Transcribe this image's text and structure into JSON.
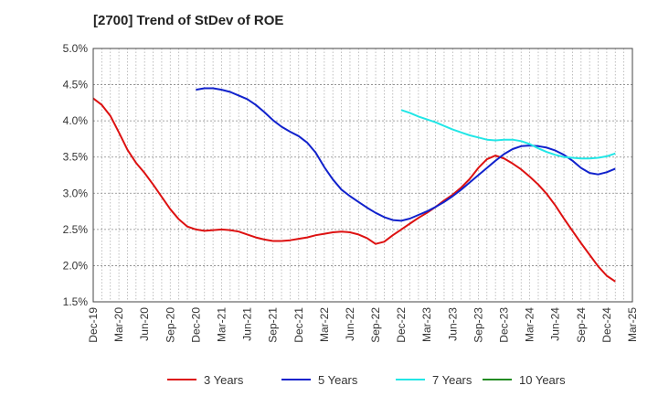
{
  "chart_data": {
    "type": "line",
    "title": "[2700]  Trend of StDev of ROE",
    "xlabel": "",
    "ylabel": "",
    "x_ticks": [
      "Dec-19",
      "Mar-20",
      "Jun-20",
      "Sep-20",
      "Dec-20",
      "Mar-21",
      "Jun-21",
      "Sep-21",
      "Dec-21",
      "Mar-22",
      "Jun-22",
      "Sep-22",
      "Dec-22",
      "Mar-23",
      "Jun-23",
      "Sep-23",
      "Dec-23",
      "Mar-24",
      "Jun-24",
      "Sep-24",
      "Dec-24",
      "Mar-25"
    ],
    "y_ticks": [
      "1.5%",
      "2.0%",
      "2.5%",
      "3.0%",
      "3.5%",
      "4.0%",
      "4.5%",
      "5.0%"
    ],
    "ylim": [
      1.5,
      5.0
    ],
    "xlim": [
      "2019-12",
      "2025-03"
    ],
    "grid": true,
    "grid_style": "dotted",
    "legend_position": "bottom",
    "series": [
      {
        "name": "3 Years",
        "color": "#dd1111",
        "points": [
          [
            "2019-12",
            4.31
          ],
          [
            "2020-01",
            4.22
          ],
          [
            "2020-02",
            4.07
          ],
          [
            "2020-03",
            3.84
          ],
          [
            "2020-04",
            3.6
          ],
          [
            "2020-05",
            3.42
          ],
          [
            "2020-06",
            3.28
          ],
          [
            "2020-07",
            3.12
          ],
          [
            "2020-08",
            2.95
          ],
          [
            "2020-09",
            2.78
          ],
          [
            "2020-10",
            2.64
          ],
          [
            "2020-11",
            2.54
          ],
          [
            "2020-12",
            2.5
          ],
          [
            "2021-01",
            2.48
          ],
          [
            "2021-02",
            2.49
          ],
          [
            "2021-03",
            2.5
          ],
          [
            "2021-04",
            2.49
          ],
          [
            "2021-05",
            2.47
          ],
          [
            "2021-06",
            2.43
          ],
          [
            "2021-07",
            2.39
          ],
          [
            "2021-08",
            2.36
          ],
          [
            "2021-09",
            2.34
          ],
          [
            "2021-10",
            2.34
          ],
          [
            "2021-11",
            2.35
          ],
          [
            "2021-12",
            2.37
          ],
          [
            "2022-01",
            2.39
          ],
          [
            "2022-02",
            2.42
          ],
          [
            "2022-03",
            2.44
          ],
          [
            "2022-04",
            2.46
          ],
          [
            "2022-05",
            2.47
          ],
          [
            "2022-06",
            2.46
          ],
          [
            "2022-07",
            2.43
          ],
          [
            "2022-08",
            2.38
          ],
          [
            "2022-09",
            2.3
          ],
          [
            "2022-10",
            2.33
          ],
          [
            "2022-11",
            2.42
          ],
          [
            "2022-12",
            2.5
          ],
          [
            "2023-01",
            2.58
          ],
          [
            "2023-02",
            2.66
          ],
          [
            "2023-03",
            2.73
          ],
          [
            "2023-04",
            2.81
          ],
          [
            "2023-05",
            2.9
          ],
          [
            "2023-06",
            2.98
          ],
          [
            "2023-07",
            3.08
          ],
          [
            "2023-08",
            3.2
          ],
          [
            "2023-09",
            3.35
          ],
          [
            "2023-10",
            3.47
          ],
          [
            "2023-11",
            3.52
          ],
          [
            "2023-12",
            3.48
          ],
          [
            "2024-01",
            3.41
          ],
          [
            "2024-02",
            3.33
          ],
          [
            "2024-03",
            3.23
          ],
          [
            "2024-04",
            3.12
          ],
          [
            "2024-05",
            2.99
          ],
          [
            "2024-06",
            2.83
          ],
          [
            "2024-07",
            2.65
          ],
          [
            "2024-08",
            2.48
          ],
          [
            "2024-09",
            2.31
          ],
          [
            "2024-10",
            2.15
          ],
          [
            "2024-11",
            1.99
          ],
          [
            "2024-12",
            1.86
          ],
          [
            "2025-01",
            1.78
          ]
        ]
      },
      {
        "name": "5 Years",
        "color": "#1122cc",
        "points": [
          [
            "2020-12",
            4.43
          ],
          [
            "2021-01",
            4.45
          ],
          [
            "2021-02",
            4.45
          ],
          [
            "2021-03",
            4.43
          ],
          [
            "2021-04",
            4.4
          ],
          [
            "2021-05",
            4.35
          ],
          [
            "2021-06",
            4.3
          ],
          [
            "2021-07",
            4.22
          ],
          [
            "2021-08",
            4.12
          ],
          [
            "2021-09",
            4.01
          ],
          [
            "2021-10",
            3.92
          ],
          [
            "2021-11",
            3.85
          ],
          [
            "2021-12",
            3.79
          ],
          [
            "2022-01",
            3.7
          ],
          [
            "2022-02",
            3.56
          ],
          [
            "2022-03",
            3.36
          ],
          [
            "2022-04",
            3.19
          ],
          [
            "2022-05",
            3.05
          ],
          [
            "2022-06",
            2.96
          ],
          [
            "2022-07",
            2.88
          ],
          [
            "2022-08",
            2.8
          ],
          [
            "2022-09",
            2.73
          ],
          [
            "2022-10",
            2.67
          ],
          [
            "2022-11",
            2.63
          ],
          [
            "2022-12",
            2.62
          ],
          [
            "2023-01",
            2.65
          ],
          [
            "2023-02",
            2.7
          ],
          [
            "2023-03",
            2.75
          ],
          [
            "2023-04",
            2.81
          ],
          [
            "2023-05",
            2.88
          ],
          [
            "2023-06",
            2.96
          ],
          [
            "2023-07",
            3.05
          ],
          [
            "2023-08",
            3.15
          ],
          [
            "2023-09",
            3.25
          ],
          [
            "2023-10",
            3.35
          ],
          [
            "2023-11",
            3.45
          ],
          [
            "2023-12",
            3.54
          ],
          [
            "2024-01",
            3.61
          ],
          [
            "2024-02",
            3.65
          ],
          [
            "2024-03",
            3.66
          ],
          [
            "2024-04",
            3.65
          ],
          [
            "2024-05",
            3.63
          ],
          [
            "2024-06",
            3.59
          ],
          [
            "2024-07",
            3.53
          ],
          [
            "2024-08",
            3.45
          ],
          [
            "2024-09",
            3.35
          ],
          [
            "2024-10",
            3.28
          ],
          [
            "2024-11",
            3.26
          ],
          [
            "2024-12",
            3.29
          ],
          [
            "2025-01",
            3.34
          ]
        ]
      },
      {
        "name": "7 Years",
        "color": "#22e6e6",
        "points": [
          [
            "2022-12",
            4.15
          ],
          [
            "2023-01",
            4.11
          ],
          [
            "2023-02",
            4.06
          ],
          [
            "2023-03",
            4.02
          ],
          [
            "2023-04",
            3.98
          ],
          [
            "2023-05",
            3.93
          ],
          [
            "2023-06",
            3.88
          ],
          [
            "2023-07",
            3.84
          ],
          [
            "2023-08",
            3.8
          ],
          [
            "2023-09",
            3.77
          ],
          [
            "2023-10",
            3.74
          ],
          [
            "2023-11",
            3.73
          ],
          [
            "2023-12",
            3.74
          ],
          [
            "2024-01",
            3.74
          ],
          [
            "2024-02",
            3.72
          ],
          [
            "2024-03",
            3.68
          ],
          [
            "2024-04",
            3.62
          ],
          [
            "2024-05",
            3.57
          ],
          [
            "2024-06",
            3.53
          ],
          [
            "2024-07",
            3.5
          ],
          [
            "2024-08",
            3.49
          ],
          [
            "2024-09",
            3.48
          ],
          [
            "2024-10",
            3.48
          ],
          [
            "2024-11",
            3.49
          ],
          [
            "2024-12",
            3.51
          ],
          [
            "2025-01",
            3.55
          ]
        ]
      },
      {
        "name": "10 Years",
        "color": "#228b22",
        "points": []
      }
    ]
  }
}
